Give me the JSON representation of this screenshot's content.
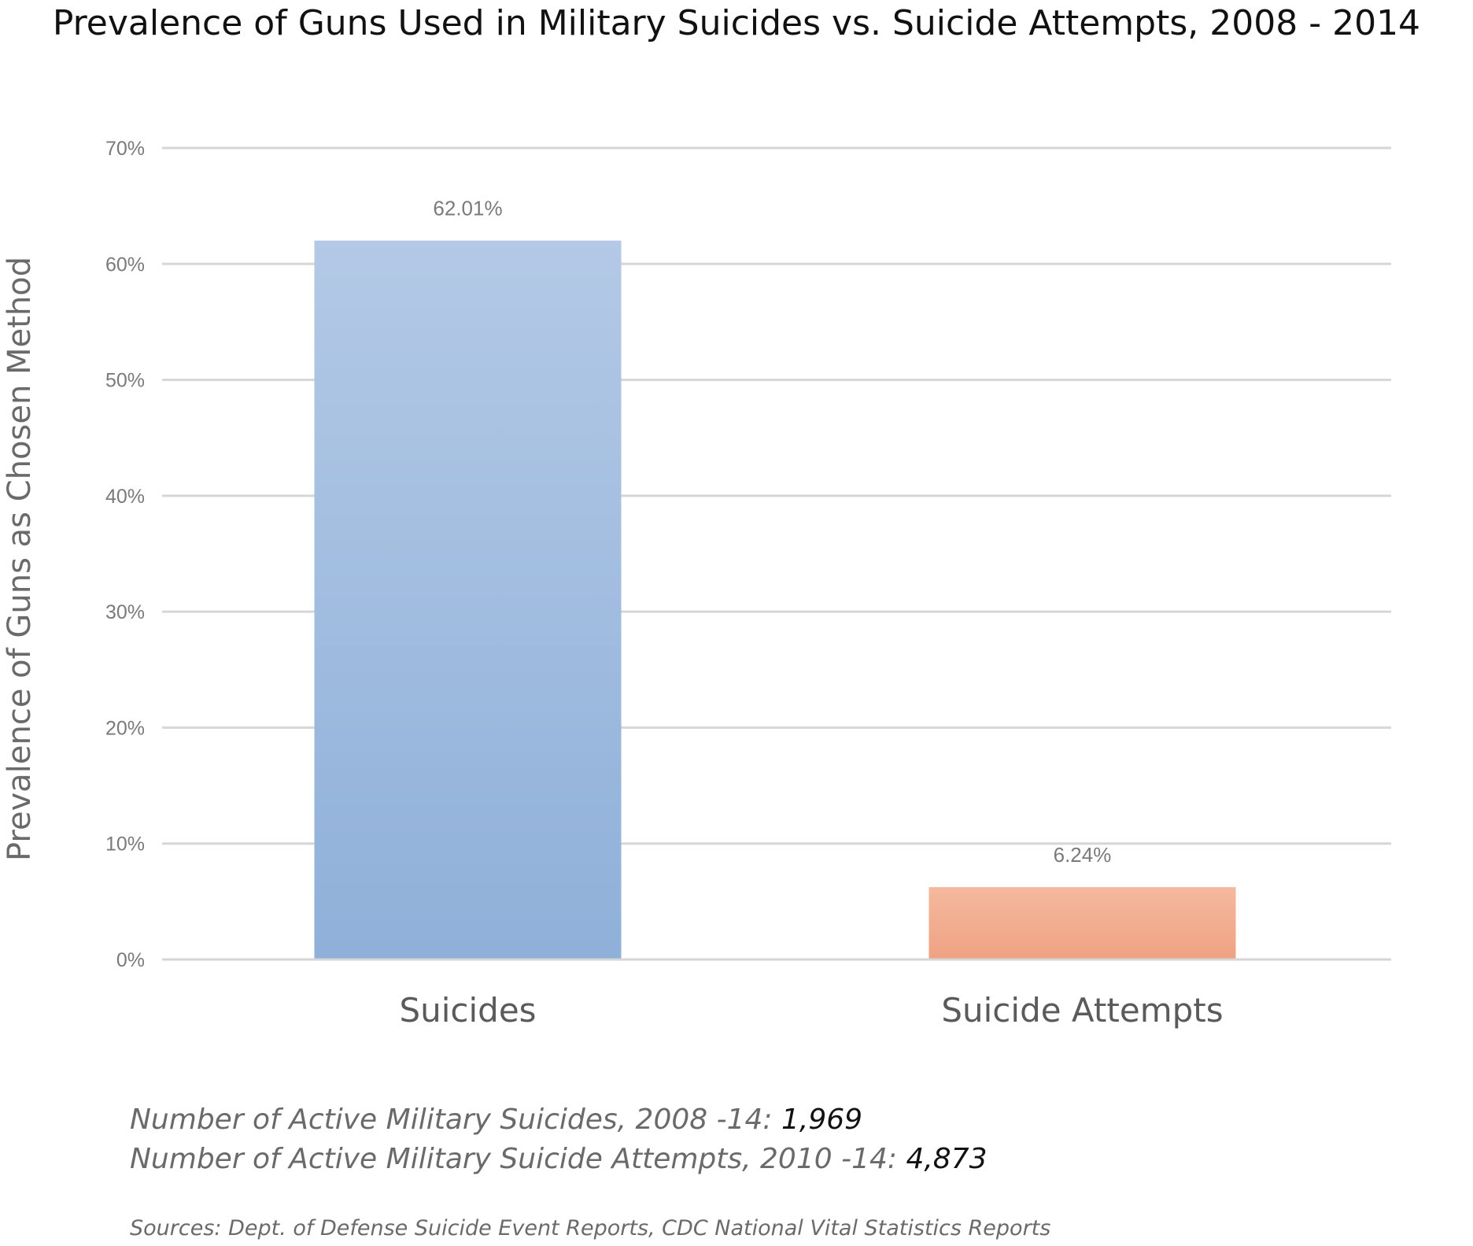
{
  "chart_data": {
    "type": "bar",
    "title": "Prevalence of Guns Used in Military Suicides vs. Suicide Attempts, 2008 - 2014",
    "ylabel": "Prevalence of Guns as Chosen Method",
    "xlabel": "",
    "categories": [
      "Suicides",
      "Suicide Attempts"
    ],
    "values": [
      62.01,
      6.24
    ],
    "data_labels": [
      "62.01%",
      "6.24%"
    ],
    "ylim": [
      0,
      70
    ],
    "yticks": [
      0,
      10,
      20,
      30,
      40,
      50,
      60,
      70
    ],
    "ytick_labels": [
      "0%",
      "10%",
      "20%",
      "30%",
      "40%",
      "50%",
      "60%",
      "70%"
    ],
    "grid": true,
    "legend": "none",
    "colors": {
      "bars": [
        {
          "top": "#b3c9e6",
          "bottom": "#8fb0d9"
        },
        {
          "top": "#f4b99e",
          "bottom": "#f0a283"
        }
      ],
      "gridline": "#d6d6d6"
    }
  },
  "notes": {
    "suicides_label": "Number of Active Military Suicides, 2008 -14: ",
    "suicides_value": "1,969",
    "attempts_label": "Number of Active Military Suicide Attempts, 2010 -14: ",
    "attempts_value": "4,873",
    "sources": "Sources: Dept. of Defense Suicide Event Reports, CDC National Vital Statistics Reports"
  }
}
